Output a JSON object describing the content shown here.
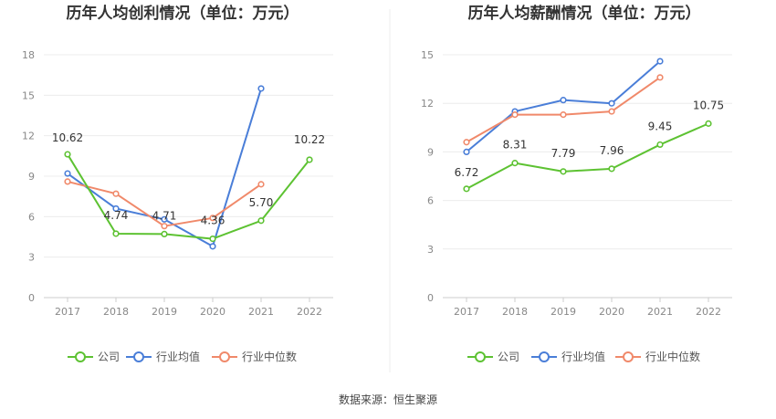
{
  "source_label": "数据来源：恒生聚源",
  "chart_data": [
    {
      "type": "line",
      "title": "历年人均创利情况（单位：万元）",
      "categories": [
        "2017",
        "2018",
        "2019",
        "2020",
        "2021",
        "2022"
      ],
      "ylim": [
        0,
        18
      ],
      "yticks": [
        0,
        3,
        6,
        9,
        12,
        15,
        18
      ],
      "grid": true,
      "legend_position": "bottom",
      "series": [
        {
          "name": "公司",
          "color": "#5dc232",
          "values": [
            10.62,
            4.74,
            4.71,
            4.36,
            5.7,
            10.22
          ],
          "labels": [
            "10.62",
            "4.74",
            "4.71",
            "4.36",
            "5.70",
            "10.22"
          ]
        },
        {
          "name": "行业均值",
          "color": "#4a7ed8",
          "values": [
            9.2,
            6.6,
            5.8,
            3.8,
            15.5,
            null
          ]
        },
        {
          "name": "行业中位数",
          "color": "#f0896a",
          "values": [
            8.6,
            7.7,
            5.3,
            5.9,
            8.4,
            null
          ]
        }
      ]
    },
    {
      "type": "line",
      "title": "历年人均薪酬情况（单位：万元）",
      "categories": [
        "2017",
        "2018",
        "2019",
        "2020",
        "2021",
        "2022"
      ],
      "ylim": [
        0,
        15
      ],
      "yticks": [
        0,
        3,
        6,
        9,
        12,
        15
      ],
      "grid": true,
      "legend_position": "bottom",
      "series": [
        {
          "name": "公司",
          "color": "#5dc232",
          "values": [
            6.72,
            8.31,
            7.79,
            7.96,
            9.45,
            10.75
          ],
          "labels": [
            "6.72",
            "8.31",
            "7.79",
            "7.96",
            "9.45",
            "10.75"
          ]
        },
        {
          "name": "行业均值",
          "color": "#4a7ed8",
          "values": [
            9.0,
            11.5,
            12.2,
            12.0,
            14.6,
            null
          ]
        },
        {
          "name": "行业中位数",
          "color": "#f0896a",
          "values": [
            9.6,
            11.3,
            11.3,
            11.5,
            13.6,
            null
          ]
        }
      ]
    }
  ]
}
